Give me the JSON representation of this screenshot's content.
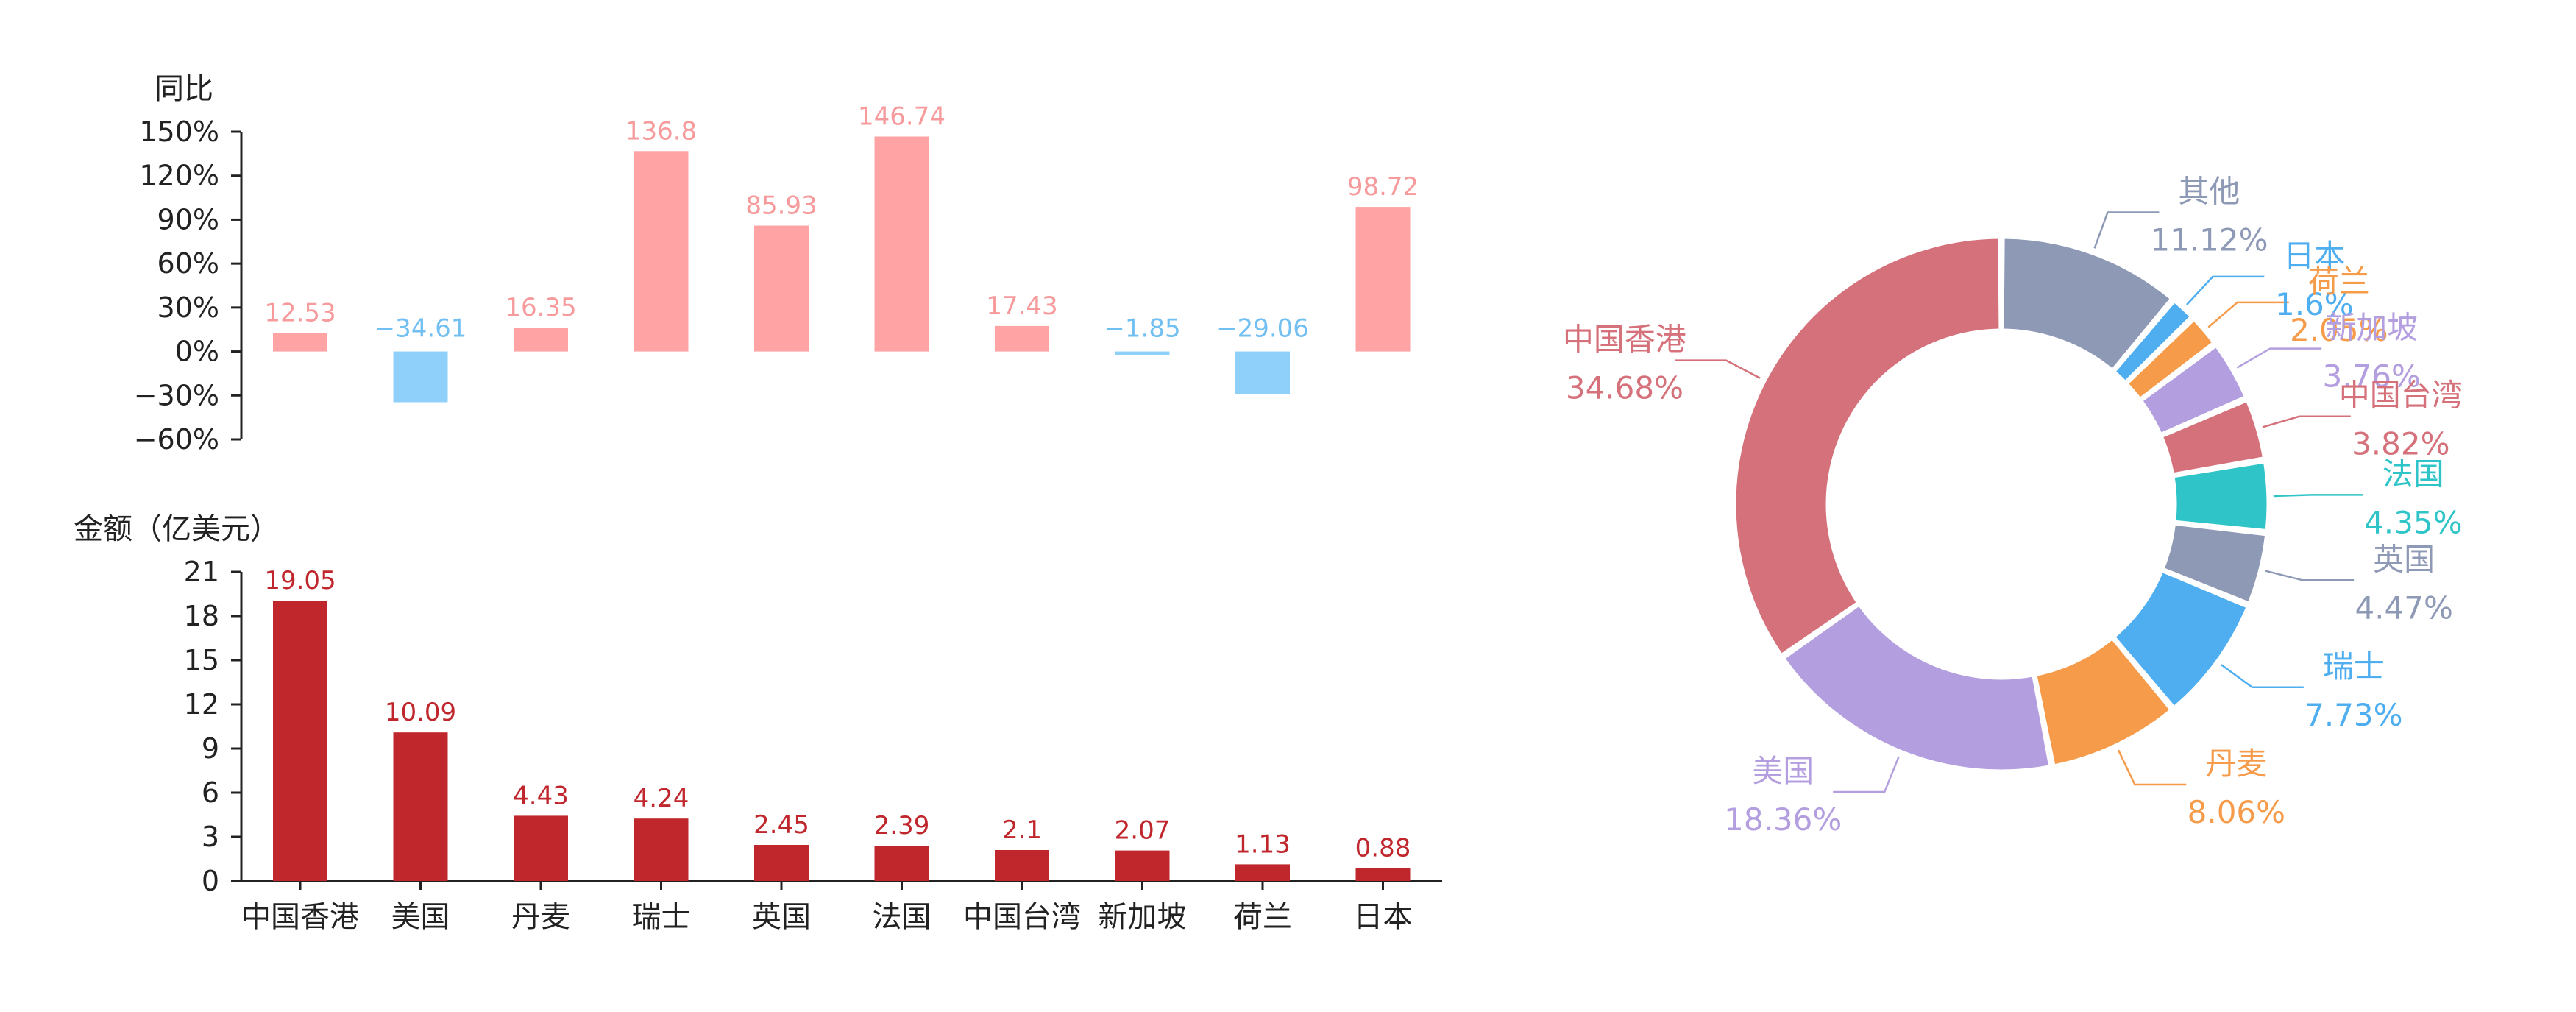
{
  "chart_data": [
    {
      "type": "bar",
      "ylabel": "同比",
      "ylim": [
        -60,
        150
      ],
      "yticks": [
        -60,
        -30,
        0,
        30,
        60,
        90,
        120,
        150
      ],
      "ytick_labels": [
        "−60%",
        "−30%",
        "0%",
        "30%",
        "60%",
        "90%",
        "120%",
        "150%"
      ],
      "categories": [
        "中国香港",
        "美国",
        "丹麦",
        "瑞士",
        "英国",
        "法国",
        "中国台湾",
        "新加坡",
        "荷兰",
        "日本"
      ],
      "values": [
        12.53,
        -34.61,
        16.35,
        136.8,
        85.93,
        146.74,
        17.43,
        -1.85,
        -29.06,
        98.72
      ],
      "value_labels": [
        "12.53",
        "−34.61",
        "16.35",
        "136.8",
        "85.93",
        "146.74",
        "17.43",
        "−1.85",
        "−29.06",
        "98.72"
      ],
      "colors": {
        "positive": "#ffa3a4",
        "negative": "#8fd0fb",
        "positive_label": "#f69a9c",
        "negative_label": "#72bff2"
      }
    },
    {
      "type": "bar",
      "ylabel": "金额（亿美元）",
      "ylim": [
        0,
        21
      ],
      "yticks": [
        0,
        3,
        6,
        9,
        12,
        15,
        18,
        21
      ],
      "ytick_labels": [
        "0",
        "3",
        "6",
        "9",
        "12",
        "15",
        "18",
        "21"
      ],
      "categories": [
        "中国香港",
        "美国",
        "丹麦",
        "瑞士",
        "英国",
        "法国",
        "中国台湾",
        "新加坡",
        "荷兰",
        "日本"
      ],
      "values": [
        19.05,
        10.09,
        4.43,
        4.24,
        2.45,
        2.39,
        2.1,
        2.07,
        1.13,
        0.88
      ],
      "value_labels": [
        "19.05",
        "10.09",
        "4.43",
        "4.24",
        "2.45",
        "2.39",
        "2.1",
        "2.07",
        "1.13",
        "0.88"
      ],
      "colors": {
        "bar": "#c0272d",
        "label": "#c0272d"
      }
    },
    {
      "type": "pie",
      "donut": true,
      "slices": [
        {
          "name": "其他",
          "value": 11.12,
          "label": "11.12%",
          "color": "#8e99b5"
        },
        {
          "name": "日本",
          "value": 1.6,
          "label": "1.6%",
          "color": "#4eaef0"
        },
        {
          "name": "荷兰",
          "value": 2.05,
          "label": "2.05%",
          "color": "#f59b4a"
        },
        {
          "name": "新加坡",
          "value": 3.76,
          "label": "3.76%",
          "color": "#b39fdf"
        },
        {
          "name": "中国台湾",
          "value": 3.82,
          "label": "3.82%",
          "color": "#d5717a"
        },
        {
          "name": "法国",
          "value": 4.35,
          "label": "4.35%",
          "color": "#2ec4c8"
        },
        {
          "name": "英国",
          "value": 4.47,
          "label": "4.47%",
          "color": "#8e99b5"
        },
        {
          "name": "瑞士",
          "value": 7.73,
          "label": "7.73%",
          "color": "#4eaef0"
        },
        {
          "name": "丹麦",
          "value": 8.06,
          "label": "8.06%",
          "color": "#f59b4a"
        },
        {
          "name": "美国",
          "value": 18.36,
          "label": "18.36%",
          "color": "#b39fdf"
        },
        {
          "name": "中国香港",
          "value": 34.68,
          "label": "34.68%",
          "color": "#d5717a"
        }
      ]
    }
  ]
}
